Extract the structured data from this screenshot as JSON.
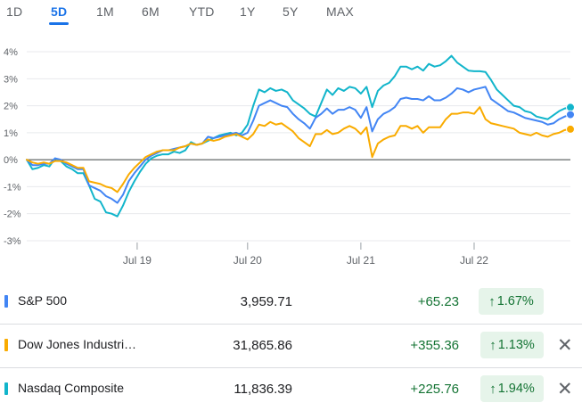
{
  "tabs": [
    "1D",
    "5D",
    "1M",
    "6M",
    "YTD",
    "1Y",
    "5Y",
    "MAX"
  ],
  "active_tab": "5D",
  "chart_data": {
    "type": "line",
    "yticks": [
      "4%",
      "3%",
      "2%",
      "1%",
      "0%",
      "-1%",
      "-2%",
      "-3%"
    ],
    "ylim": [
      -3.2,
      4.2
    ],
    "xlim": [
      0,
      96
    ],
    "xticks": [
      {
        "label": "Jul 19",
        "x": 19.5
      },
      {
        "label": "Jul 20",
        "x": 39
      },
      {
        "label": "Jul 21",
        "x": 59
      },
      {
        "label": "Jul 22",
        "x": 79
      }
    ],
    "baseline": 0,
    "gridlines": true,
    "series": [
      {
        "name": "Nasdaq Composite",
        "color": "#12b5cb",
        "values": [
          0,
          -0.35,
          -0.3,
          -0.2,
          -0.25,
          0.05,
          -0.05,
          -0.25,
          -0.35,
          -0.5,
          -0.5,
          -0.95,
          -1.45,
          -1.55,
          -1.95,
          -2,
          -2.1,
          -1.7,
          -1.2,
          -0.8,
          -0.45,
          -0.15,
          0.05,
          0.15,
          0.2,
          0.2,
          0.3,
          0.25,
          0.35,
          0.65,
          0.55,
          0.6,
          0.7,
          0.8,
          0.9,
          0.95,
          1.0,
          0.9,
          1.0,
          1.3,
          2.0,
          2.6,
          2.5,
          2.65,
          2.55,
          2.6,
          2.5,
          2.2,
          2.05,
          1.9,
          1.7,
          1.6,
          2.1,
          2.6,
          2.4,
          2.65,
          2.55,
          2.7,
          2.65,
          2.45,
          2.7,
          1.95,
          2.55,
          2.75,
          2.85,
          3.1,
          3.45,
          3.45,
          3.35,
          3.45,
          3.3,
          3.55,
          3.45,
          3.5,
          3.65,
          3.85,
          3.6,
          3.45,
          3.3,
          3.28,
          3.28,
          3.25,
          2.95,
          2.6,
          2.4,
          2.2,
          2.0,
          1.95,
          1.8,
          1.75,
          1.6,
          1.55,
          1.5,
          1.65,
          1.8,
          1.9,
          1.94
        ]
      },
      {
        "name": "S&P 500",
        "color": "#4285f4",
        "values": [
          0,
          -0.2,
          -0.2,
          -0.15,
          -0.15,
          0.05,
          0,
          -0.15,
          -0.25,
          -0.35,
          -0.35,
          -0.95,
          -1.05,
          -1.15,
          -1.35,
          -1.45,
          -1.6,
          -1.3,
          -0.8,
          -0.5,
          -0.25,
          0.0,
          0.15,
          0.25,
          0.35,
          0.35,
          0.4,
          0.45,
          0.5,
          0.6,
          0.55,
          0.6,
          0.85,
          0.8,
          0.85,
          0.9,
          0.95,
          1.0,
          0.9,
          1.0,
          1.45,
          2.0,
          2.1,
          2.2,
          2.1,
          2.0,
          1.95,
          1.7,
          1.5,
          1.35,
          1.15,
          1.55,
          1.7,
          1.9,
          1.7,
          1.85,
          1.85,
          1.95,
          1.85,
          1.55,
          1.95,
          1.05,
          1.5,
          1.7,
          1.8,
          1.95,
          2.25,
          2.3,
          2.25,
          2.25,
          2.2,
          2.35,
          2.2,
          2.2,
          2.3,
          2.45,
          2.65,
          2.6,
          2.5,
          2.6,
          2.65,
          2.7,
          2.25,
          2.1,
          1.95,
          1.8,
          1.75,
          1.65,
          1.55,
          1.5,
          1.45,
          1.4,
          1.3,
          1.35,
          1.5,
          1.6,
          1.67
        ]
      },
      {
        "name": "Dow Jones Industri…",
        "color": "#f9ab00",
        "values": [
          0,
          -0.1,
          -0.15,
          -0.1,
          -0.15,
          -0.05,
          -0.05,
          -0.1,
          -0.2,
          -0.3,
          -0.3,
          -0.8,
          -0.85,
          -0.9,
          -1.0,
          -1.05,
          -1.2,
          -0.9,
          -0.55,
          -0.3,
          -0.1,
          0.1,
          0.2,
          0.3,
          0.35,
          0.35,
          0.35,
          0.45,
          0.5,
          0.6,
          0.55,
          0.6,
          0.75,
          0.7,
          0.75,
          0.85,
          0.9,
          0.95,
          0.85,
          0.75,
          0.95,
          1.3,
          1.25,
          1.4,
          1.3,
          1.35,
          1.2,
          1.05,
          0.8,
          0.65,
          0.5,
          0.95,
          0.95,
          1.1,
          0.95,
          1.0,
          1.15,
          1.25,
          1.15,
          0.95,
          1.2,
          0.1,
          0.6,
          0.75,
          0.85,
          0.9,
          1.25,
          1.25,
          1.15,
          1.25,
          1.0,
          1.2,
          1.2,
          1.2,
          1.5,
          1.7,
          1.7,
          1.75,
          1.75,
          1.7,
          1.95,
          1.5,
          1.35,
          1.3,
          1.25,
          1.2,
          1.15,
          1.0,
          0.95,
          0.9,
          1.0,
          0.9,
          0.85,
          0.95,
          1.0,
          1.1,
          1.13
        ]
      }
    ]
  },
  "rows": [
    {
      "name": "S&P 500",
      "price": "3,959.71",
      "change": "+65.23",
      "arrow": "↑",
      "pct": "1.67%",
      "color": "#4285f4",
      "close": ""
    },
    {
      "name": "Dow Jones Industri…",
      "price": "31,865.86",
      "change": "+355.36",
      "arrow": "↑",
      "pct": "1.13%",
      "color": "#f9ab00",
      "close": "✕"
    },
    {
      "name": "Nasdaq Composite",
      "price": "11,836.39",
      "change": "+225.76",
      "arrow": "↑",
      "pct": "1.94%",
      "color": "#12b5cb",
      "close": "✕"
    }
  ]
}
